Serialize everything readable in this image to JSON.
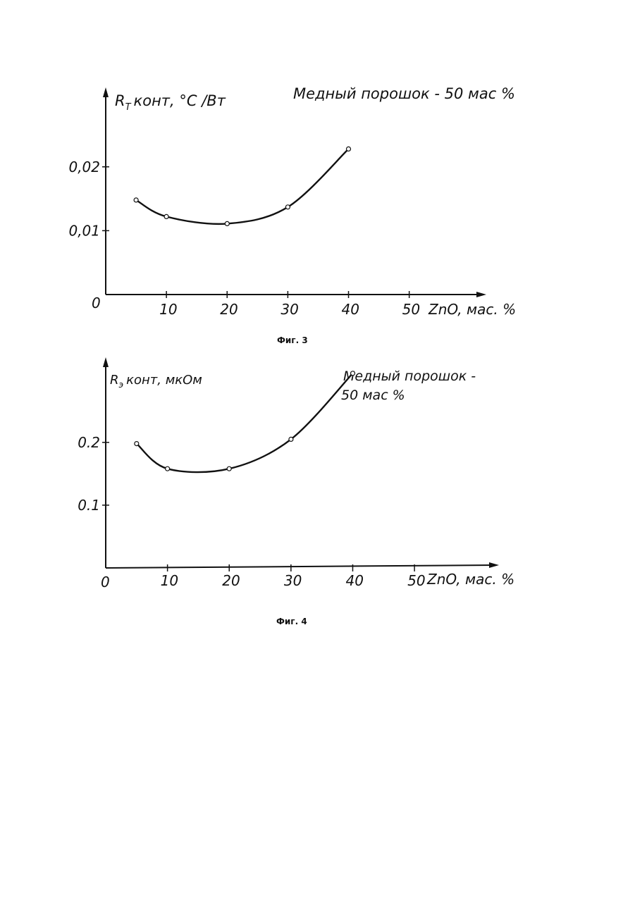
{
  "chart_data": [
    {
      "type": "line",
      "ylabel": "R",
      "ylabel_sub": "T",
      "ylabel_rest": "конт, °C /Вт",
      "annotation": "Медный порошок - 50 мас %",
      "xlabel": "ZnO, мас. %",
      "origin_label": "0",
      "x_ticks": [
        "10",
        "20",
        "30",
        "40",
        "50"
      ],
      "x_tick_values": [
        10,
        20,
        30,
        40,
        50
      ],
      "y_ticks": [
        "0,01",
        "0,02"
      ],
      "y_tick_values": [
        0.01,
        0.02
      ],
      "xlim": [
        0,
        62
      ],
      "ylim": [
        0,
        0.032
      ],
      "grid": false,
      "caption": "Фиг. 3",
      "series": [
        {
          "x": [
            5,
            10,
            20,
            30,
            40
          ],
          "y": [
            0.0148,
            0.0122,
            0.0111,
            0.0137,
            0.0228
          ]
        }
      ]
    },
    {
      "type": "line",
      "ylabel": "R",
      "ylabel_sub": "э",
      "ylabel_rest": "конт, мкОм",
      "annotation": "Медный порошок -",
      "annotation_line2": "50 мас %",
      "xlabel": "ZnO, мас. %",
      "origin_label": "0",
      "x_ticks": [
        "10",
        "20",
        "30",
        "40",
        "50"
      ],
      "x_tick_values": [
        10,
        20,
        30,
        40,
        50
      ],
      "y_ticks": [
        "0.1",
        "0.2"
      ],
      "y_tick_values": [
        0.1,
        0.2
      ],
      "xlim": [
        0,
        63
      ],
      "ylim": [
        0,
        0.33
      ],
      "grid": false,
      "caption": "Фиг. 4",
      "series": [
        {
          "x": [
            5,
            10,
            20,
            30,
            40
          ],
          "y": [
            0.198,
            0.158,
            0.158,
            0.205,
            0.31
          ]
        }
      ]
    }
  ]
}
